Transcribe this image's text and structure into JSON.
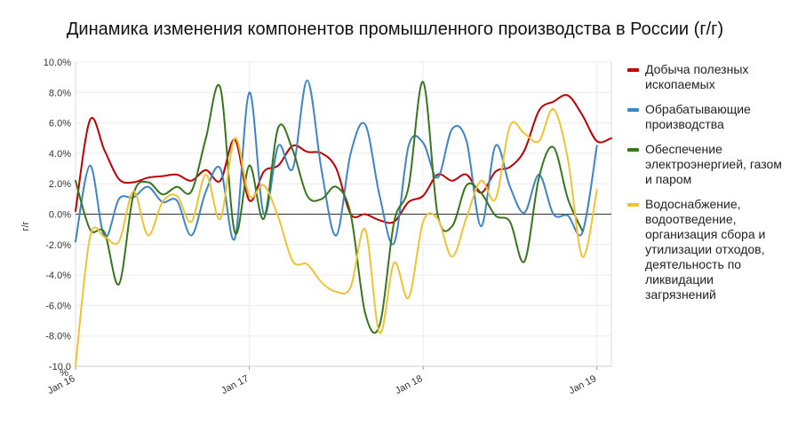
{
  "chart_data": {
    "type": "line",
    "title": "Динамика изменения компонентов промышленного производства в России (г/г)",
    "ylabel": "г/г",
    "y_unit_label": "%",
    "ylim": [
      -10,
      10
    ],
    "y_ticks": [
      "10.0%",
      "8.0%",
      "6.0%",
      "4.0%",
      "2.0%",
      "0.0%",
      "-2.0%",
      "-4.0%",
      "-6.0%",
      "-8.0%",
      "-10.0"
    ],
    "x_ticks": [
      {
        "label": "Jan 16",
        "month": 0
      },
      {
        "label": "Jan 17",
        "month": 12
      },
      {
        "label": "Jan 18",
        "month": 24
      },
      {
        "label": "Jan 19",
        "month": 36
      }
    ],
    "x_range": [
      "2016-01",
      "2019-02"
    ],
    "zero_line": true,
    "legend_position": "right",
    "series": [
      {
        "name": "Добыча полезных ископаемых",
        "color": "#c00000",
        "values": [
          0.2,
          6.2,
          4.2,
          2.3,
          2.1,
          2.4,
          2.5,
          2.6,
          2.2,
          2.9,
          2.2,
          4.9,
          0.9,
          2.8,
          3.2,
          4.5,
          4.1,
          4.0,
          3.0,
          0.0,
          0.0,
          -0.4,
          -0.5,
          0.8,
          1.2,
          2.6,
          2.2,
          2.6,
          1.4,
          2.8,
          3.1,
          4.2,
          6.8,
          7.4,
          7.8,
          6.5,
          4.8,
          5.0
        ]
      },
      {
        "name": "Обрабатывающие производства",
        "color": "#3d85c6",
        "values": [
          -1.8,
          3.2,
          -1.5,
          1.0,
          1.1,
          1.8,
          0.8,
          0.9,
          -1.4,
          1.5,
          3.0,
          -1.6,
          8.0,
          0.0,
          4.5,
          3.0,
          8.8,
          2.8,
          -1.4,
          4.0,
          5.9,
          1.2,
          -1.9,
          4.5,
          4.7,
          2.4,
          5.6,
          4.8,
          -0.8,
          4.5,
          1.8,
          0.1,
          2.6,
          0.0,
          -0.1,
          -1.2,
          4.5
        ]
      },
      {
        "name": "Обеспечение электроэнергией, газом и паром",
        "color": "#38761d",
        "values": [
          2.2,
          -1.0,
          -1.2,
          -4.6,
          1.3,
          2.1,
          1.3,
          1.8,
          1.5,
          5.0,
          8.3,
          -1.2,
          3.2,
          -0.3,
          5.7,
          4.2,
          1.2,
          1.0,
          1.8,
          0.0,
          -6.5,
          -7.3,
          -0.5,
          1.8,
          8.7,
          0.0,
          -0.8,
          1.9,
          1.4,
          -0.1,
          -0.5,
          -3.1,
          2.4,
          4.4,
          1.0,
          -1.1
        ]
      },
      {
        "name": "Водоснабжение, водоотведение, организация сбора и утилизации отходов, деятельность по ликвидации загрязнений",
        "color": "#f1c232",
        "values": [
          -10.0,
          -1.5,
          -1.5,
          -1.8,
          1.5,
          -1.4,
          0.8,
          1.2,
          -0.5,
          2.6,
          -0.3,
          5.0,
          1.2,
          1.9,
          -0.2,
          -3.1,
          -3.3,
          -4.5,
          -5.1,
          -4.8,
          -1.0,
          -7.8,
          -3.2,
          -5.5,
          -0.5,
          -0.3,
          -2.8,
          -0.2,
          2.2,
          1.0,
          5.8,
          5.3,
          4.8,
          6.9,
          3.6,
          -2.8,
          1.6
        ]
      }
    ]
  }
}
